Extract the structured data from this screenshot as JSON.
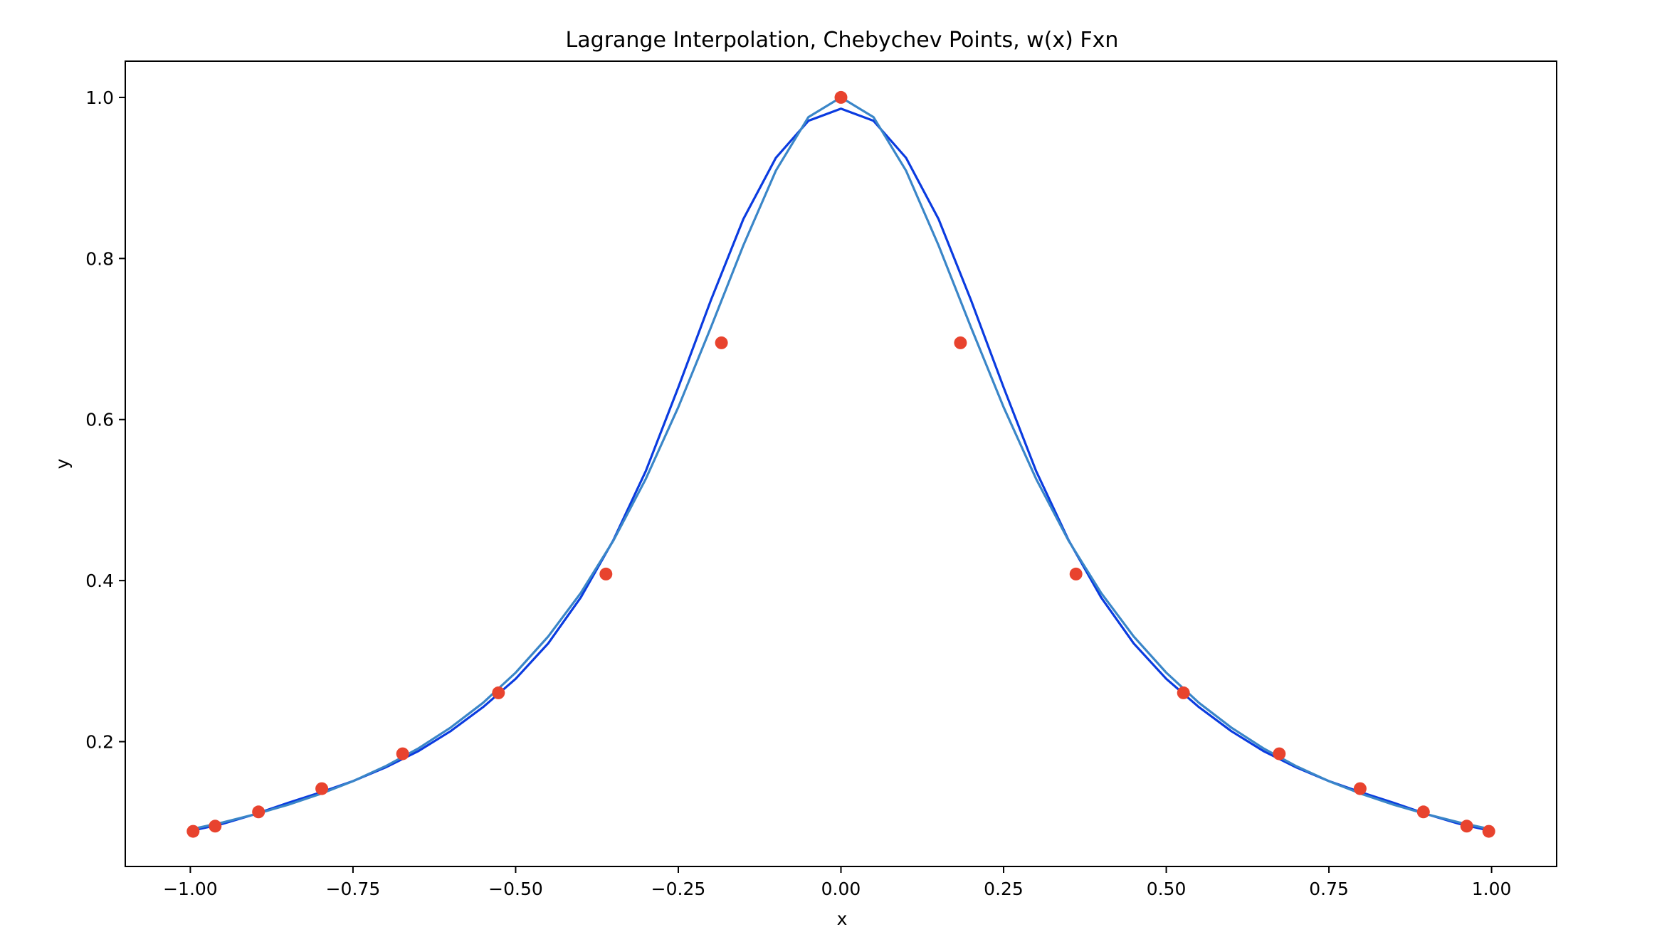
{
  "chart_data": {
    "type": "line",
    "title": "Lagrange Interpolation, Chebychev Points, w(x) Fxn",
    "xlabel": "x",
    "ylabel": "y",
    "xlim": [
      -1.1,
      1.1
    ],
    "ylim": [
      0.045,
      1.045
    ],
    "grid": false,
    "legend": "none",
    "x_ticks": [
      -1.0,
      -0.75,
      -0.5,
      -0.25,
      0.0,
      0.25,
      0.5,
      0.75,
      1.0
    ],
    "x_tick_labels": [
      "−1.00",
      "−0.75",
      "−0.50",
      "−0.25",
      "0.00",
      "0.25",
      "0.50",
      "0.75",
      "1.00"
    ],
    "y_ticks": [
      0.2,
      0.4,
      0.6,
      0.8,
      1.0
    ],
    "y_tick_labels": [
      "0.2",
      "0.4",
      "0.6",
      "0.8",
      "1.0"
    ],
    "series": [
      {
        "kind": "line",
        "color": "#0a3be0",
        "x": [
          -1.0,
          -0.95,
          -0.9,
          -0.85,
          -0.8,
          -0.75,
          -0.7,
          -0.65,
          -0.6,
          -0.55,
          -0.5,
          -0.45,
          -0.4,
          -0.35,
          -0.3,
          -0.25,
          -0.2,
          -0.15,
          -0.1,
          -0.05,
          0.0,
          0.05,
          0.1,
          0.15,
          0.2,
          0.25,
          0.3,
          0.35,
          0.4,
          0.45,
          0.5,
          0.55,
          0.6,
          0.65,
          0.7,
          0.75,
          0.8,
          0.85,
          0.9,
          0.95,
          1.0
        ],
        "y": [
          0.089,
          0.098,
          0.11,
          0.124,
          0.137,
          0.151,
          0.168,
          0.188,
          0.213,
          0.243,
          0.278,
          0.322,
          0.379,
          0.45,
          0.536,
          0.64,
          0.748,
          0.849,
          0.925,
          0.971,
          0.986,
          0.971,
          0.925,
          0.849,
          0.748,
          0.64,
          0.536,
          0.45,
          0.379,
          0.322,
          0.278,
          0.243,
          0.213,
          0.188,
          0.168,
          0.151,
          0.137,
          0.124,
          0.11,
          0.098,
          0.089
        ]
      },
      {
        "kind": "line",
        "color": "#3a86c8",
        "x": [
          -1.0,
          -0.95,
          -0.9,
          -0.85,
          -0.8,
          -0.75,
          -0.7,
          -0.65,
          -0.6,
          -0.55,
          -0.5,
          -0.45,
          -0.4,
          -0.35,
          -0.3,
          -0.25,
          -0.2,
          -0.15,
          -0.1,
          -0.05,
          0.0,
          0.05,
          0.1,
          0.15,
          0.2,
          0.25,
          0.3,
          0.35,
          0.4,
          0.45,
          0.5,
          0.55,
          0.6,
          0.65,
          0.7,
          0.75,
          0.8,
          0.85,
          0.9,
          0.95,
          1.0
        ],
        "y": [
          0.0909,
          0.0997,
          0.1099,
          0.1216,
          0.1351,
          0.1509,
          0.1695,
          0.1914,
          0.2174,
          0.2484,
          0.2857,
          0.3306,
          0.3846,
          0.4494,
          0.5263,
          0.6154,
          0.7143,
          0.8163,
          0.9091,
          0.9756,
          1.0,
          0.9756,
          0.9091,
          0.8163,
          0.7143,
          0.6154,
          0.5263,
          0.4494,
          0.3846,
          0.3306,
          0.2857,
          0.2484,
          0.2174,
          0.1914,
          0.1695,
          0.1509,
          0.1351,
          0.1216,
          0.1099,
          0.0997,
          0.0909
        ]
      },
      {
        "kind": "scatter",
        "color": "#e8432e",
        "x": [
          -0.9957,
          -0.9618,
          -0.8952,
          -0.798,
          -0.6737,
          -0.5264,
          -0.3612,
          -0.1837,
          0.0,
          0.1837,
          0.3612,
          0.5264,
          0.6737,
          0.798,
          0.8952,
          0.9618,
          0.9957
        ],
        "y": [
          0.0886,
          0.0951,
          0.1128,
          0.1416,
          0.1849,
          0.2606,
          0.4082,
          0.6953,
          1.0,
          0.6953,
          0.4082,
          0.2606,
          0.1849,
          0.1416,
          0.1128,
          0.0951,
          0.0886
        ]
      }
    ]
  }
}
